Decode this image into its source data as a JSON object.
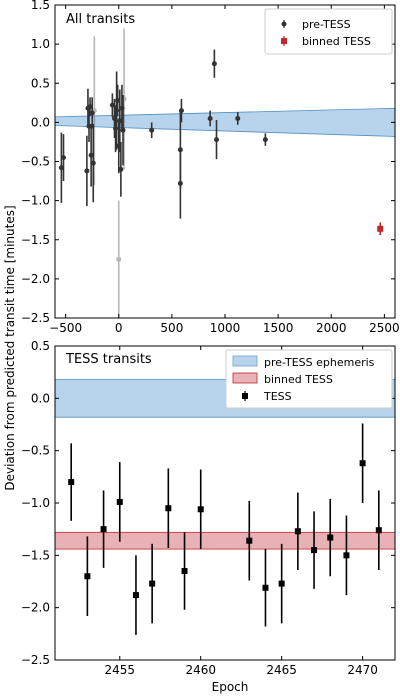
{
  "ylabel": "Deviation from predicted transit time [minutes]",
  "chart_data": [
    {
      "type": "scatter",
      "panel_label": "All transits",
      "xlim": [
        -600,
        2600
      ],
      "ylim": [
        -2.5,
        1.5
      ],
      "xticks": [
        -500,
        0,
        500,
        1000,
        1500,
        2000,
        2500
      ],
      "yticks": [
        -2.5,
        -2.0,
        -1.5,
        -1.0,
        -0.5,
        0.0,
        0.5,
        1.0,
        1.5
      ],
      "legend": {
        "placement": "top-right",
        "entries": [
          "pre-TESS",
          "binned TESS"
        ]
      },
      "band": {
        "x": [
          -600,
          2600
        ],
        "upper": [
          0.07,
          0.18
        ],
        "lower": [
          -0.04,
          -0.18
        ],
        "color": "#8ab8e0"
      },
      "series": [
        {
          "name": "pre-TESS",
          "color": "#333333",
          "points": [
            {
              "x": -540,
              "y": -0.58,
              "err": 0.45
            },
            {
              "x": -520,
              "y": -0.45,
              "err": 0.3
            },
            {
              "x": -300,
              "y": -0.62,
              "err": 0.45
            },
            {
              "x": -290,
              "y": 0.18,
              "err": 0.25
            },
            {
              "x": -280,
              "y": -0.05,
              "err": 0.2
            },
            {
              "x": -270,
              "y": 0.2,
              "err": 0.12
            },
            {
              "x": -260,
              "y": -0.42,
              "err": 0.4
            },
            {
              "x": -250,
              "y": 0.12,
              "err": 0.2
            },
            {
              "x": -240,
              "y": -0.52,
              "err": 0.5
            },
            {
              "x": -230,
              "y": 0.15,
              "err": 0.95,
              "faint": true
            },
            {
              "x": -60,
              "y": 0.22,
              "err": 0.15
            },
            {
              "x": -40,
              "y": 0.05,
              "err": 0.25
            },
            {
              "x": -30,
              "y": -0.08,
              "err": 0.3
            },
            {
              "x": -20,
              "y": 0.15,
              "err": 0.5
            },
            {
              "x": -10,
              "y": 0.28,
              "err": 0.2
            },
            {
              "x": 0,
              "y": -0.3,
              "err": 0.35
            },
            {
              "x": 10,
              "y": 0.02,
              "err": 0.4
            },
            {
              "x": 20,
              "y": -0.6,
              "err": 0.35
            },
            {
              "x": 30,
              "y": 0.18,
              "err": 0.3
            },
            {
              "x": 40,
              "y": -0.1,
              "err": 0.45
            },
            {
              "x": 50,
              "y": 0.3,
              "err": 0.9,
              "faint": true
            },
            {
              "x": 0,
              "y": -1.75,
              "err": 0.75,
              "faint": true
            },
            {
              "x": 310,
              "y": -0.1,
              "err": 0.1
            },
            {
              "x": 580,
              "y": -0.35,
              "err": 0.5
            },
            {
              "x": 580,
              "y": -0.78,
              "err": 0.45
            },
            {
              "x": 590,
              "y": 0.15,
              "err": 0.15
            },
            {
              "x": 860,
              "y": 0.05,
              "err": 0.1
            },
            {
              "x": 900,
              "y": 0.75,
              "err": 0.18
            },
            {
              "x": 920,
              "y": -0.22,
              "err": 0.25
            },
            {
              "x": 1120,
              "y": 0.05,
              "err": 0.08
            },
            {
              "x": 1380,
              "y": -0.22,
              "err": 0.08
            }
          ]
        },
        {
          "name": "binned TESS",
          "color": "#c0292b",
          "points": [
            {
              "x": 2461,
              "y": -1.36,
              "err": 0.08
            }
          ]
        }
      ]
    },
    {
      "type": "scatter",
      "panel_label": "TESS transits",
      "xlabel": "Epoch",
      "xlim": [
        2451,
        2472
      ],
      "ylim": [
        -2.5,
        0.5
      ],
      "xticks": [
        2455,
        2460,
        2465,
        2470
      ],
      "yticks": [
        -2.5,
        -2.0,
        -1.5,
        -1.0,
        -0.5,
        0.0,
        0.5
      ],
      "legend": {
        "placement": "top-right",
        "entries": [
          "pre-TESS ephemeris",
          "binned TESS",
          "TESS"
        ]
      },
      "band": {
        "x": [
          2451,
          2472
        ],
        "upper": [
          0.18,
          0.18
        ],
        "lower": [
          -0.18,
          -0.18
        ],
        "color": "#8ab8e0"
      },
      "binned_band": {
        "center": -1.36,
        "halfwidth": 0.08,
        "color": "#d9848a"
      },
      "series": [
        {
          "name": "TESS",
          "color": "#000000",
          "points": [
            {
              "x": 2452,
              "y": -0.8,
              "err": 0.37
            },
            {
              "x": 2453,
              "y": -1.7,
              "err": 0.38
            },
            {
              "x": 2454,
              "y": -1.25,
              "err": 0.37
            },
            {
              "x": 2455,
              "y": -0.99,
              "err": 0.38
            },
            {
              "x": 2456,
              "y": -1.88,
              "err": 0.38
            },
            {
              "x": 2457,
              "y": -1.77,
              "err": 0.38
            },
            {
              "x": 2458,
              "y": -1.05,
              "err": 0.38
            },
            {
              "x": 2459,
              "y": -1.65,
              "err": 0.37
            },
            {
              "x": 2460,
              "y": -1.06,
              "err": 0.38
            },
            {
              "x": 2463,
              "y": -1.36,
              "err": 0.38
            },
            {
              "x": 2464,
              "y": -1.81,
              "err": 0.37
            },
            {
              "x": 2465,
              "y": -1.77,
              "err": 0.38
            },
            {
              "x": 2466,
              "y": -1.27,
              "err": 0.37
            },
            {
              "x": 2467,
              "y": -1.45,
              "err": 0.37
            },
            {
              "x": 2468,
              "y": -1.33,
              "err": 0.37
            },
            {
              "x": 2469,
              "y": -1.5,
              "err": 0.38
            },
            {
              "x": 2470,
              "y": -0.62,
              "err": 0.38
            },
            {
              "x": 2471,
              "y": -1.26,
              "err": 0.38
            }
          ]
        }
      ]
    }
  ]
}
